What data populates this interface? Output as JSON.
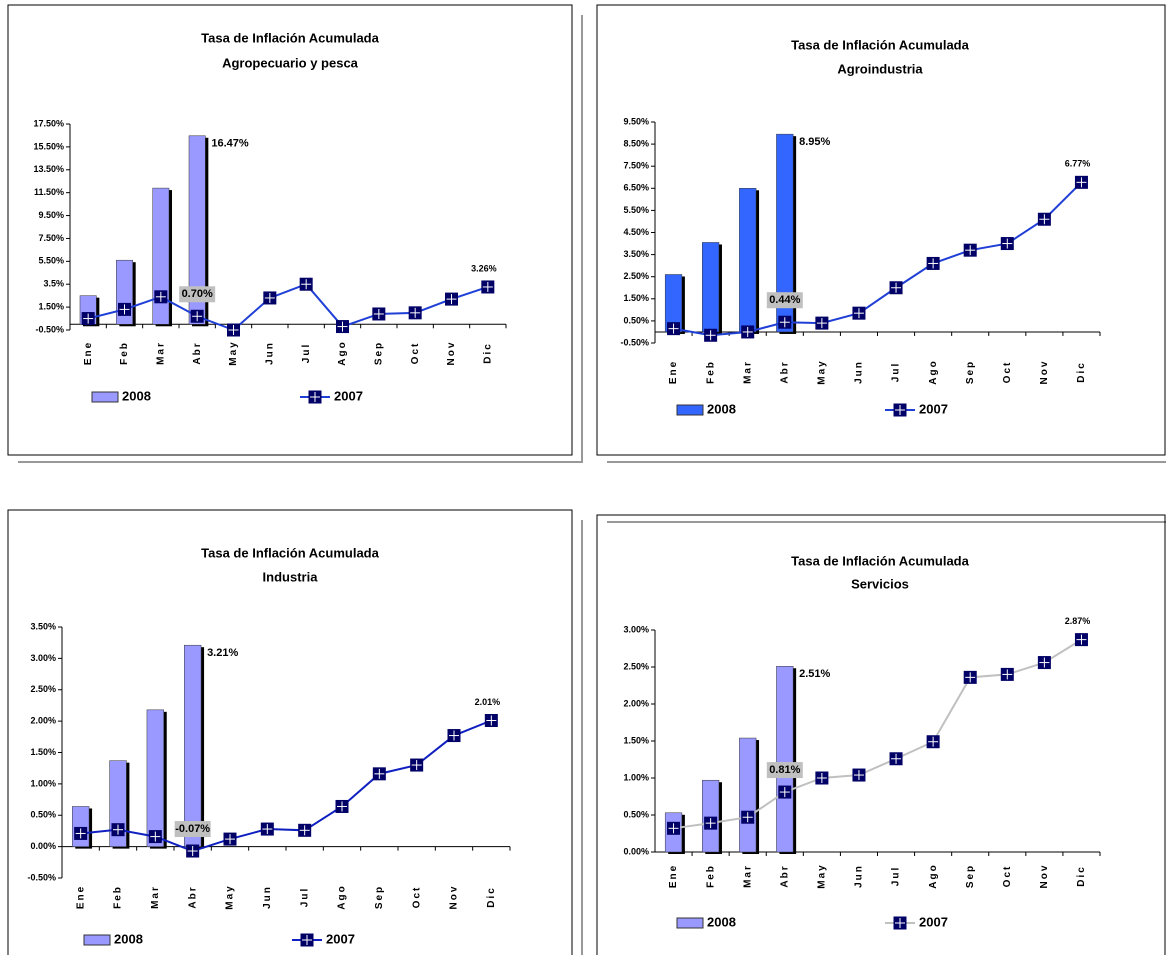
{
  "chart_data": [
    {
      "type": "bar_line",
      "title": "Tasa de Inflación Acumulada",
      "subtitle": "Agropecuario y pesca",
      "categories": [
        "Ene",
        "Feb",
        "Mar",
        "Abr",
        "May",
        "Jun",
        "Jul",
        "Ago",
        "Sep",
        "Oct",
        "Nov",
        "Dic"
      ],
      "ylim": [
        -0.5,
        17.5
      ],
      "yticks": [
        {
          "value": -0.5,
          "label": "-0.50%"
        },
        {
          "value": 1.5,
          "label": "1.50%"
        },
        {
          "value": 3.5,
          "label": "3.5%"
        },
        {
          "value": 5.5,
          "label": "5.50%"
        },
        {
          "value": 7.5,
          "label": "7.50%"
        },
        {
          "value": 9.5,
          "label": "9.50%"
        },
        {
          "value": 11.5,
          "label": "11.50%"
        },
        {
          "value": 13.5,
          "label": "13.50%"
        },
        {
          "value": 15.5,
          "label": "15.50%"
        },
        {
          "value": 17.5,
          "label": "17.50%"
        }
      ],
      "series": [
        {
          "name": "2008",
          "type": "bar",
          "color": "#9999ff",
          "values": [
            2.5,
            5.6,
            11.9,
            16.47,
            null,
            null,
            null,
            null,
            null,
            null,
            null,
            null
          ],
          "value_labels": [
            null,
            null,
            null,
            "16.47%",
            null,
            null,
            null,
            null,
            null,
            null,
            null,
            null
          ]
        },
        {
          "name": "2007",
          "type": "line",
          "color": "#1f3fd6",
          "values": [
            0.5,
            1.3,
            2.4,
            0.7,
            -0.5,
            2.3,
            3.5,
            -0.2,
            0.9,
            1.0,
            2.2,
            3.26
          ],
          "value_labels": [
            null,
            null,
            null,
            "0.70%",
            null,
            null,
            null,
            null,
            null,
            null,
            null,
            "3.26%"
          ]
        }
      ]
    },
    {
      "type": "bar_line",
      "title": "Tasa de Inflación Acumulada",
      "subtitle": "Agroindustria",
      "categories": [
        "Ene",
        "Feb",
        "Mar",
        "Abr",
        "May",
        "Jun",
        "Jul",
        "Ago",
        "Sep",
        "Oct",
        "Nov",
        "Dic"
      ],
      "ylim": [
        -0.5,
        9.5
      ],
      "yticks": [
        {
          "value": -0.5,
          "label": "-0.50%"
        },
        {
          "value": 0.5,
          "label": "0.50%"
        },
        {
          "value": 1.5,
          "label": "1.50%"
        },
        {
          "value": 2.5,
          "label": "2.50%"
        },
        {
          "value": 3.5,
          "label": "3.50%"
        },
        {
          "value": 4.5,
          "label": "4.50%"
        },
        {
          "value": 5.5,
          "label": "5.50%"
        },
        {
          "value": 6.5,
          "label": "6.50%"
        },
        {
          "value": 7.5,
          "label": "7.50%"
        },
        {
          "value": 8.5,
          "label": "8.50%"
        },
        {
          "value": 9.5,
          "label": "9.50%"
        }
      ],
      "series": [
        {
          "name": "2008",
          "type": "bar",
          "color": "#3366ff",
          "values": [
            2.6,
            4.05,
            6.5,
            8.95,
            null,
            null,
            null,
            null,
            null,
            null,
            null,
            null
          ],
          "value_labels": [
            null,
            null,
            null,
            "8.95%",
            null,
            null,
            null,
            null,
            null,
            null,
            null,
            null
          ]
        },
        {
          "name": "2007",
          "type": "line",
          "color": "#1f3fd6",
          "values": [
            0.15,
            -0.15,
            0.0,
            0.44,
            0.4,
            0.85,
            2.0,
            3.1,
            3.7,
            4.0,
            5.1,
            6.77
          ],
          "value_labels": [
            null,
            null,
            null,
            "0.44%",
            null,
            null,
            null,
            null,
            null,
            null,
            null,
            "6.77%"
          ]
        }
      ]
    },
    {
      "type": "bar_line",
      "title": "Tasa de Inflación Acumulada",
      "subtitle": "Industria",
      "categories": [
        "Ene",
        "Feb",
        "Mar",
        "Abr",
        "May",
        "Jun",
        "Jul",
        "Ago",
        "Sep",
        "Oct",
        "Nov",
        "Dic"
      ],
      "ylim": [
        -0.5,
        3.5
      ],
      "yticks": [
        {
          "value": -0.5,
          "label": "-0.50%"
        },
        {
          "value": 0,
          "label": "0.00%"
        },
        {
          "value": 0.5,
          "label": "0.50%"
        },
        {
          "value": 1,
          "label": "1.00%"
        },
        {
          "value": 1.5,
          "label": "1.50%"
        },
        {
          "value": 2,
          "label": "2.00%"
        },
        {
          "value": 2.5,
          "label": "2.50%"
        },
        {
          "value": 3,
          "label": "3.00%"
        },
        {
          "value": 3.5,
          "label": "3.50%"
        }
      ],
      "series": [
        {
          "name": "2008",
          "type": "bar",
          "color": "#9999ff",
          "values": [
            0.64,
            1.37,
            2.18,
            3.21,
            null,
            null,
            null,
            null,
            null,
            null,
            null,
            null
          ],
          "value_labels": [
            null,
            null,
            null,
            "3.21%",
            null,
            null,
            null,
            null,
            null,
            null,
            null,
            null
          ]
        },
        {
          "name": "2007",
          "type": "line",
          "color": "#1020c0",
          "values": [
            0.21,
            0.27,
            0.16,
            -0.07,
            0.12,
            0.28,
            0.26,
            0.64,
            1.16,
            1.3,
            1.77,
            2.01
          ],
          "value_labels": [
            null,
            null,
            null,
            "-0.07%",
            null,
            null,
            null,
            null,
            null,
            null,
            null,
            "2.01%"
          ]
        }
      ]
    },
    {
      "type": "bar_line",
      "title": "Tasa de Inflación Acumulada",
      "subtitle": "Servicios",
      "categories": [
        "Ene",
        "Feb",
        "Mar",
        "Abr",
        "May",
        "Jun",
        "Jul",
        "Ago",
        "Sep",
        "Oct",
        "Nov",
        "Dic"
      ],
      "ylim": [
        0,
        3
      ],
      "yticks": [
        {
          "value": 0,
          "label": "0.00%"
        },
        {
          "value": 0.5,
          "label": "0.50%"
        },
        {
          "value": 1,
          "label": "1.00%"
        },
        {
          "value": 1.5,
          "label": "1.50%"
        },
        {
          "value": 2,
          "label": "2.00%"
        },
        {
          "value": 2.5,
          "label": "2.50%"
        },
        {
          "value": 3,
          "label": "3.00%"
        }
      ],
      "series": [
        {
          "name": "2008",
          "type": "bar",
          "color": "#9999ff",
          "values": [
            0.53,
            0.97,
            1.54,
            2.51,
            null,
            null,
            null,
            null,
            null,
            null,
            null,
            null
          ],
          "value_labels": [
            null,
            null,
            null,
            "2.51%",
            null,
            null,
            null,
            null,
            null,
            null,
            null,
            null
          ]
        },
        {
          "name": "2007",
          "type": "line",
          "color": "#c0c0c0",
          "values": [
            0.32,
            0.39,
            0.47,
            0.81,
            1.0,
            1.04,
            1.26,
            1.49,
            2.36,
            2.4,
            2.56,
            2.87
          ],
          "value_labels": [
            null,
            null,
            null,
            "0.81%",
            null,
            null,
            null,
            null,
            null,
            null,
            null,
            "2.87%"
          ]
        }
      ]
    }
  ]
}
